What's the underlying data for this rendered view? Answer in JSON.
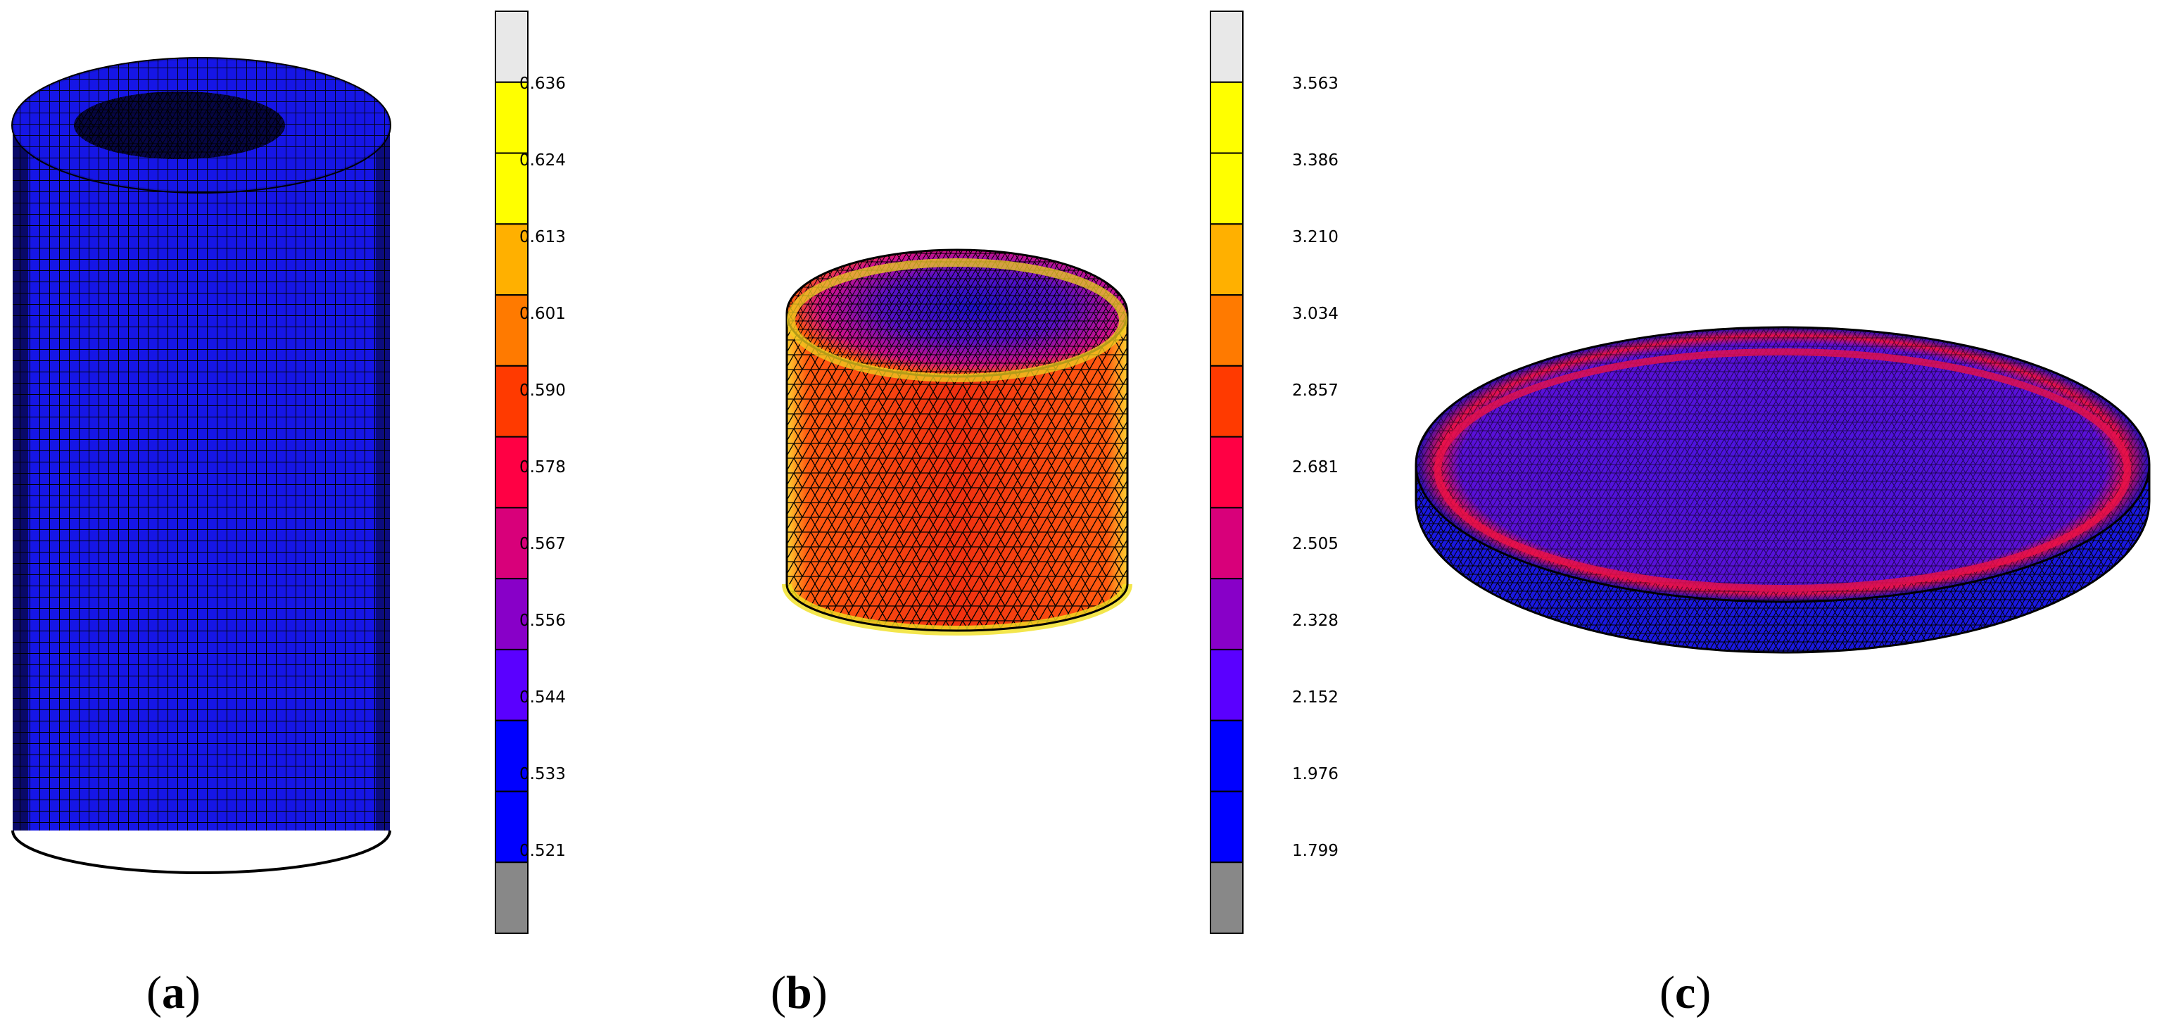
{
  "panels": [
    {
      "label": "a"
    },
    {
      "label": "b"
    },
    {
      "label": "c"
    }
  ],
  "scale_a": {
    "ticks": [
      "0.636",
      "0.624",
      "0.613",
      "0.601",
      "0.590",
      "0.578",
      "0.567",
      "0.556",
      "0.544",
      "0.533",
      "0.521"
    ]
  },
  "scale_b": {
    "ticks": [
      "3.563",
      "3.386",
      "3.210",
      "3.034",
      "2.857",
      "2.681",
      "2.505",
      "2.328",
      "2.152",
      "1.976",
      "1.799"
    ]
  },
  "colors": {
    "bands": [
      "#e8e8e8",
      "#ffff00",
      "#ffff00",
      "#ffb000",
      "#ff7a00",
      "#ff3a00",
      "#ff0044",
      "#d8007a",
      "#8800c8",
      "#5a00ff",
      "#0000ff",
      "#0000ff",
      "#888888"
    ],
    "mesh_blue": "#1a1ae6",
    "grid_line": "#000000"
  }
}
